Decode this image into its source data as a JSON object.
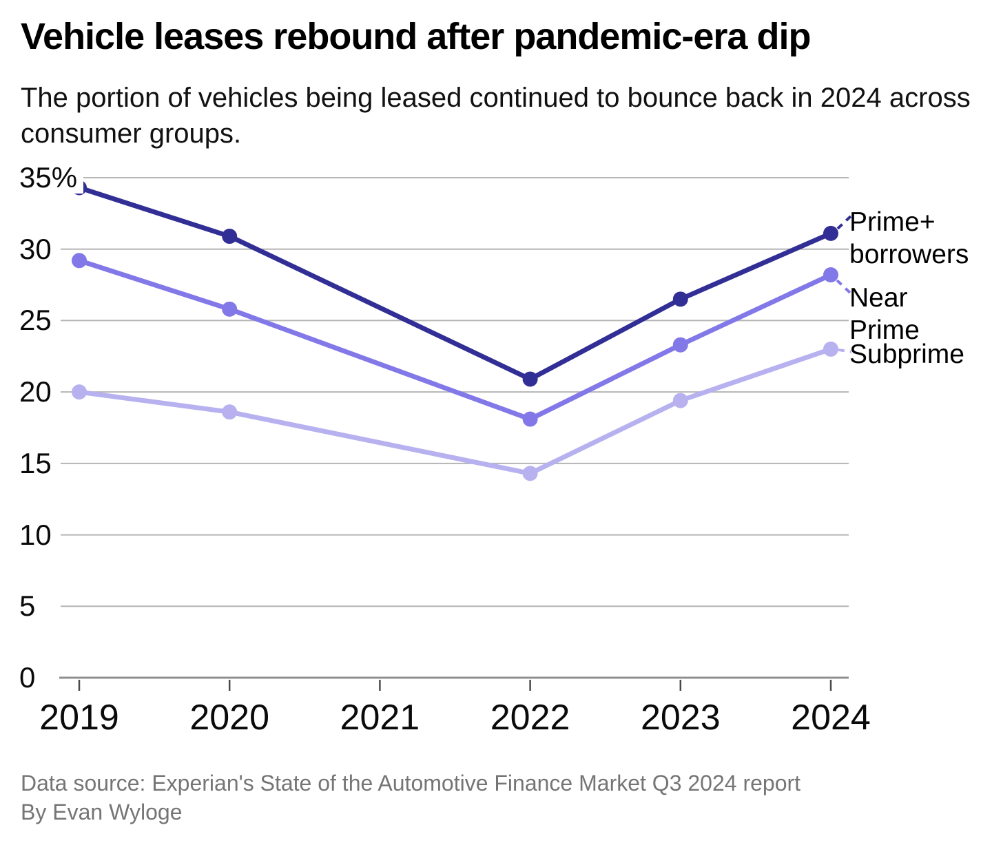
{
  "title": "Vehicle leases rebound after pandemic-era dip",
  "subtitle": "The portion of vehicles being leased continued to bounce back in 2024 across consumer groups.",
  "footer": {
    "source": "Data source: Experian's State of the Automotive Finance Market Q3 2024 report",
    "byline": "By Evan Wyloge"
  },
  "colors": {
    "prime_plus": "#312e95",
    "near_prime": "#8278e8",
    "subprime": "#b7b1f0",
    "gridline": "#b5b5b5",
    "axis_line": "#8f8f8f",
    "tick": "#4a4a4a",
    "footer_text": "#757575"
  },
  "chart_data": {
    "type": "line",
    "x": [
      "2019",
      "2020",
      "2021",
      "2022",
      "2023",
      "2024"
    ],
    "series": [
      {
        "name": "Prime+ borrowers",
        "label_lines": [
          "Prime+",
          "borrowers"
        ],
        "color": "#312e95",
        "values": [
          34.3,
          30.9,
          null,
          20.9,
          26.5,
          31.1
        ]
      },
      {
        "name": "Near Prime",
        "label_lines": [
          "Near",
          "Prime"
        ],
        "color": "#8278e8",
        "values": [
          29.2,
          25.8,
          null,
          18.1,
          23.3,
          28.2
        ]
      },
      {
        "name": "Subprime",
        "label_lines": [
          "Subprime"
        ],
        "color": "#b7b1f0",
        "values": [
          20.0,
          18.6,
          null,
          14.3,
          19.4,
          23.0
        ]
      }
    ],
    "y_ticks": [
      0,
      5,
      10,
      15,
      20,
      25,
      30,
      35
    ],
    "y_tick_labels": [
      "0",
      "5",
      "10",
      "15",
      "20",
      "25",
      "30",
      "35%"
    ],
    "ylim": [
      0,
      35
    ],
    "grid": true,
    "legend_position": "right-annotations",
    "notes": "No markers at 2021; lines connect 2020 directly to 2022."
  }
}
